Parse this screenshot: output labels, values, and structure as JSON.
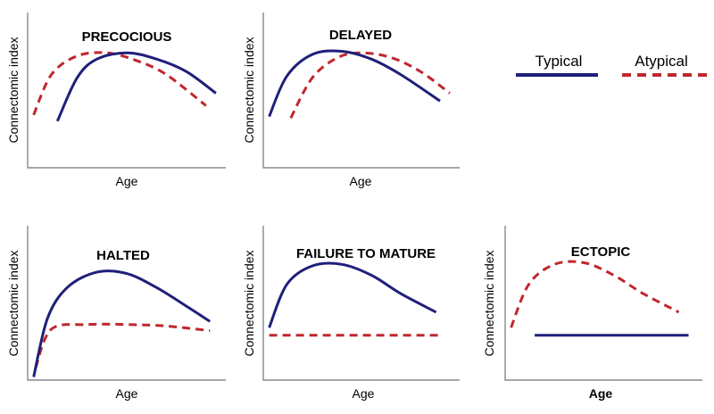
{
  "colors": {
    "typical": "#1f1f7a",
    "atypical": "#c0272d",
    "axis": "#888888"
  },
  "legend": {
    "typical_label": "Typical",
    "atypical_label": "Atypical"
  },
  "chart_data": [
    {
      "type": "line",
      "title": "PRECOCIOUS",
      "xlabel": "Age",
      "ylabel": "Connectomic index",
      "xlim": [
        0,
        1
      ],
      "ylim": [
        0,
        1
      ],
      "series": [
        {
          "name": "Typical",
          "style": "solid",
          "x": [
            0.15,
            0.25,
            0.35,
            0.5,
            0.65,
            0.8,
            0.95
          ],
          "y": [
            0.3,
            0.58,
            0.7,
            0.74,
            0.7,
            0.62,
            0.48
          ]
        },
        {
          "name": "Atypical",
          "style": "dashed",
          "x": [
            0.03,
            0.12,
            0.25,
            0.4,
            0.55,
            0.7,
            0.9
          ],
          "y": [
            0.34,
            0.6,
            0.72,
            0.74,
            0.69,
            0.6,
            0.4
          ]
        }
      ]
    },
    {
      "type": "line",
      "title": "DELAYED",
      "xlabel": "Age",
      "ylabel": "Connectomic index",
      "xlim": [
        0,
        1
      ],
      "ylim": [
        0,
        1
      ],
      "series": [
        {
          "name": "Typical",
          "style": "solid",
          "x": [
            0.03,
            0.12,
            0.25,
            0.4,
            0.55,
            0.7,
            0.9
          ],
          "y": [
            0.33,
            0.59,
            0.73,
            0.75,
            0.7,
            0.6,
            0.43
          ]
        },
        {
          "name": "Atypical",
          "style": "dashed",
          "x": [
            0.14,
            0.25,
            0.38,
            0.5,
            0.65,
            0.8,
            0.95
          ],
          "y": [
            0.32,
            0.58,
            0.71,
            0.74,
            0.71,
            0.62,
            0.48
          ]
        }
      ]
    },
    {
      "type": "line",
      "title": "HALTED",
      "xlabel": "Age",
      "ylabel": "Connectomic index",
      "xlim": [
        0,
        1
      ],
      "ylim": [
        0,
        1
      ],
      "series": [
        {
          "name": "Typical",
          "style": "solid",
          "x": [
            0.03,
            0.1,
            0.2,
            0.35,
            0.5,
            0.65,
            0.8,
            0.92
          ],
          "y": [
            0.02,
            0.4,
            0.6,
            0.7,
            0.69,
            0.6,
            0.48,
            0.38
          ]
        },
        {
          "name": "Atypical",
          "style": "dashed",
          "x": [
            0.04,
            0.12,
            0.3,
            0.5,
            0.7,
            0.92
          ],
          "y": [
            0.08,
            0.33,
            0.36,
            0.36,
            0.35,
            0.32
          ]
        }
      ]
    },
    {
      "type": "line",
      "title": "FAILURE TO MATURE",
      "xlabel": "Age",
      "ylabel": "Connectomic index",
      "xlim": [
        0,
        1
      ],
      "ylim": [
        0,
        1
      ],
      "series": [
        {
          "name": "Typical",
          "style": "solid",
          "x": [
            0.03,
            0.12,
            0.25,
            0.4,
            0.55,
            0.7,
            0.88
          ],
          "y": [
            0.34,
            0.62,
            0.74,
            0.75,
            0.68,
            0.56,
            0.44
          ]
        },
        {
          "name": "Atypical",
          "style": "dashed",
          "x": [
            0.03,
            0.9
          ],
          "y": [
            0.29,
            0.29
          ]
        }
      ]
    },
    {
      "type": "line",
      "title": "ECTOPIC",
      "xlabel": "Age",
      "ylabel": "Connectomic index",
      "xlim": [
        0,
        1
      ],
      "ylim": [
        0,
        1
      ],
      "series": [
        {
          "name": "Typical",
          "style": "solid",
          "x": [
            0.15,
            0.93
          ],
          "y": [
            0.29,
            0.29
          ]
        },
        {
          "name": "Atypical",
          "style": "dashed",
          "x": [
            0.03,
            0.12,
            0.25,
            0.4,
            0.55,
            0.7,
            0.88
          ],
          "y": [
            0.34,
            0.62,
            0.75,
            0.76,
            0.68,
            0.56,
            0.44
          ]
        }
      ]
    }
  ]
}
